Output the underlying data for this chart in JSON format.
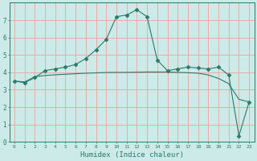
{
  "title": "",
  "xlabel": "Humidex (Indice chaleur)",
  "bg_color": "#cceae7",
  "grid_color": "#f0a0a0",
  "line_color": "#2a7a6a",
  "marker": "D",
  "marker_size": 2.5,
  "xlim": [
    -0.5,
    23.5
  ],
  "ylim": [
    0,
    8
  ],
  "xticks": [
    0,
    1,
    2,
    3,
    4,
    5,
    6,
    7,
    8,
    9,
    10,
    11,
    12,
    13,
    14,
    15,
    16,
    17,
    18,
    19,
    20,
    21,
    22,
    23
  ],
  "yticks": [
    0,
    1,
    2,
    3,
    4,
    5,
    6,
    7
  ],
  "line1_x": [
    0,
    1,
    2,
    3,
    4,
    5,
    6,
    7,
    8,
    9,
    10,
    11,
    12,
    13,
    14,
    15,
    16,
    17,
    18,
    19,
    20,
    21,
    22,
    23
  ],
  "line1_y": [
    3.5,
    3.4,
    3.7,
    4.1,
    4.2,
    4.3,
    4.45,
    4.8,
    5.3,
    5.9,
    7.2,
    7.3,
    7.6,
    7.2,
    4.7,
    4.1,
    4.2,
    4.3,
    4.25,
    4.2,
    4.3,
    3.85,
    0.35,
    2.3
  ],
  "line2_x": [
    0,
    1,
    2,
    3,
    4,
    5,
    6,
    7,
    8,
    9,
    10,
    11,
    12,
    13,
    14,
    15,
    16,
    17,
    18,
    19,
    20,
    21,
    22,
    23
  ],
  "line2_y": [
    3.5,
    3.45,
    3.75,
    3.82,
    3.86,
    3.89,
    3.92,
    3.95,
    3.97,
    3.99,
    4.0,
    4.0,
    4.01,
    4.02,
    4.02,
    4.02,
    4.0,
    3.98,
    3.95,
    3.85,
    3.65,
    3.35,
    2.45,
    2.3
  ]
}
